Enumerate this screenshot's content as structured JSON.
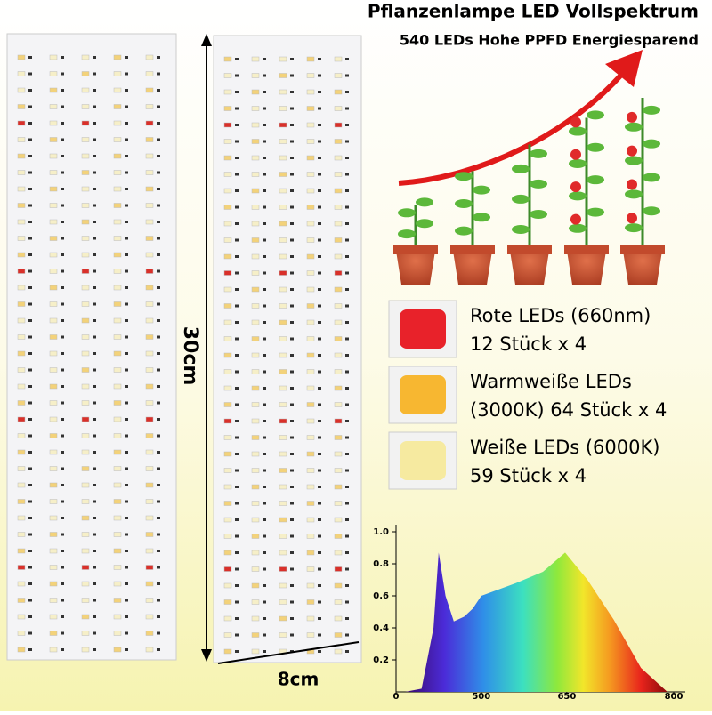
{
  "header": {
    "title": "Pflanzenlampe LED Vollspektrum",
    "subtitle": "540 LEDs Hohe PPFD Energiesparend"
  },
  "dimensions": {
    "height": "30cm",
    "width": "8cm"
  },
  "leds": [
    {
      "name": "Rote LEDs (660nm)",
      "count": "12 Stück x 4",
      "color": "#e8222a"
    },
    {
      "name": "Warmweiße LEDs",
      "count": "(3000K) 64 Stück x 4",
      "color": "#f7b731"
    },
    {
      "name": "Weiße LEDs (6000K)",
      "count": "59 Stück x 4",
      "color": "#f6eaa0"
    }
  ],
  "spectrum": {
    "x": [
      52,
      150,
      220,
      250,
      290,
      339,
      400,
      450,
      500,
      561,
      608,
      647,
      679,
      716,
      754,
      791
    ],
    "values": [
      0,
      0.02,
      0.4,
      0.87,
      0.6,
      0.44,
      0.47,
      0.52,
      0.6,
      0.68,
      0.75,
      0.87,
      0.7,
      0.45,
      0.15,
      0
    ],
    "ylim": [
      0,
      1.05
    ],
    "yticks": [
      {
        "value": 0.2,
        "label": "0.2"
      },
      {
        "value": 0.4,
        "label": "0.4"
      },
      {
        "value": 0.6,
        "label": "0.6"
      },
      {
        "value": 0.8,
        "label": "0.8"
      },
      {
        "value": 1,
        "label": "1.0"
      }
    ],
    "xticks": [
      0,
      500,
      650,
      800
    ]
  }
}
